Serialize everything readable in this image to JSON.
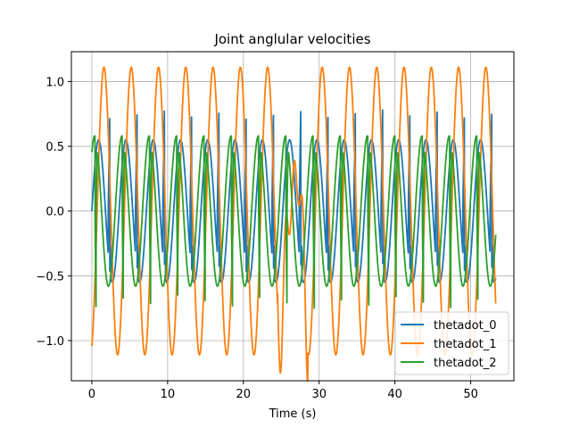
{
  "chart_data": {
    "type": "line",
    "title": "Joint anglular velocities",
    "xlabel": "Time (s)",
    "ylabel": "",
    "xlim": [
      -2.7,
      55.7
    ],
    "ylim": [
      -1.31,
      1.23
    ],
    "xticks": [
      0,
      10,
      20,
      30,
      40,
      50
    ],
    "xtick_labels": [
      "0",
      "10",
      "20",
      "30",
      "40",
      "50"
    ],
    "yticks": [
      -1.0,
      -0.5,
      0.0,
      0.5,
      1.0
    ],
    "ytick_labels": [
      "−1.0",
      "−0.5",
      "0.0",
      "0.5",
      "1.0"
    ],
    "grid": true,
    "legend_position": "lower-right",
    "x_range": [
      0,
      53.3
    ],
    "series": [
      {
        "name": "thetadot_0",
        "color": "#1f77b4",
        "description": "oscillation approx amplitude 0.55 with period ~3.6 s; spikes up to ~0.8 and down to ~-0.5",
        "amplitude": 0.55,
        "period": 3.6,
        "phase": 0.0,
        "spike_high": 0.78,
        "spike_low": -0.47
      },
      {
        "name": "thetadot_1",
        "color": "#ff7f0e",
        "description": "sinusoid approx amplitude 1.11 with period ~3.6 s; disturbance near t≈25-28",
        "amplitude": 1.11,
        "period": 3.6,
        "phase": 0.0
      },
      {
        "name": "thetadot_2",
        "color": "#2ca02c",
        "description": "oscillation approx amplitude 0.58 with period ~3.6 s; spikes down to ~-0.75",
        "amplitude": 0.58,
        "period": 3.6,
        "phase": 0.9,
        "spike_low": -0.75,
        "spike_high": 0.45
      }
    ]
  }
}
